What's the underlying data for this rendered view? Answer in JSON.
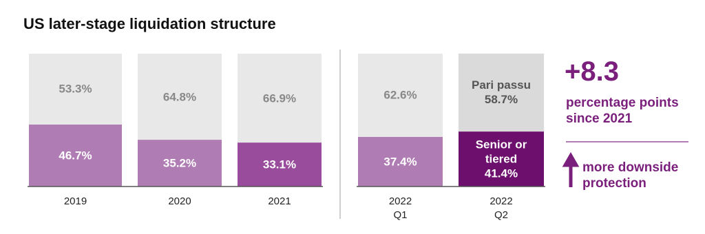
{
  "chart_data": {
    "type": "stacked-bar",
    "title": "US later-stage liquidation structure",
    "categories": [
      "2019",
      "2020",
      "2021",
      "2022 Q1",
      "2022 Q2"
    ],
    "ylim": [
      0,
      100
    ],
    "series": [
      {
        "name": "Senior or tiered",
        "colors": [
          "#b07cb4",
          "#b07cb4",
          "#9a4c9c",
          "#b07cb4",
          "#6d0f6d"
        ],
        "values": [
          46.7,
          35.2,
          33.1,
          37.4,
          41.4
        ],
        "value_labels": [
          "46.7%",
          "35.2%",
          "33.1%",
          "37.4%",
          "41.4%"
        ]
      },
      {
        "name": "Pari passu",
        "colors": [
          "#e8e8e8",
          "#e8e8e8",
          "#e8e8e8",
          "#e8e8e8",
          "#dadada"
        ],
        "values": [
          53.3,
          64.8,
          66.9,
          62.6,
          58.7
        ],
        "value_labels": [
          "53.3%",
          "64.8%",
          "66.9%",
          "62.6%",
          "58.7%"
        ]
      }
    ],
    "annotation": {
      "headline": "+8.3",
      "text": "percentage points since 2021",
      "note": "more downside protection",
      "color": "#7a1f7c"
    }
  }
}
